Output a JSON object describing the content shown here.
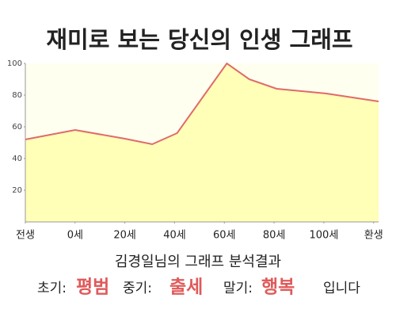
{
  "chart_data": {
    "type": "area",
    "title": "재미로 보는 당신의 인생 그래프",
    "x": [
      -20,
      0,
      20,
      31,
      41,
      61,
      70,
      81,
      101,
      122
    ],
    "values": [
      52,
      58,
      52.5,
      49,
      56,
      100,
      90,
      84,
      81,
      76
    ],
    "color": "#e06a6a",
    "fill": "#ffffb8",
    "background": "#fffff0",
    "xlim": [
      -20,
      122
    ],
    "xticks": [
      {
        "value": -20,
        "label": "전생"
      },
      {
        "value": 0,
        "label": "0세"
      },
      {
        "value": 20,
        "label": "20세"
      },
      {
        "value": 40,
        "label": "40세"
      },
      {
        "value": 60,
        "label": "60세"
      },
      {
        "value": 80,
        "label": "80세"
      },
      {
        "value": 100,
        "label": "100세"
      },
      {
        "value": 120,
        "label": "환생"
      }
    ],
    "ylim": [
      0,
      100
    ],
    "yticks": [
      20,
      40,
      60,
      80,
      100
    ],
    "grid": false
  },
  "caption": "김경일님의 그래프 분석결과",
  "summary": [
    {
      "label": "초기:",
      "value": "평범"
    },
    {
      "label": "중기:",
      "value": "출세"
    },
    {
      "label": "말기:",
      "value": "행복"
    }
  ],
  "ending": "입니다"
}
